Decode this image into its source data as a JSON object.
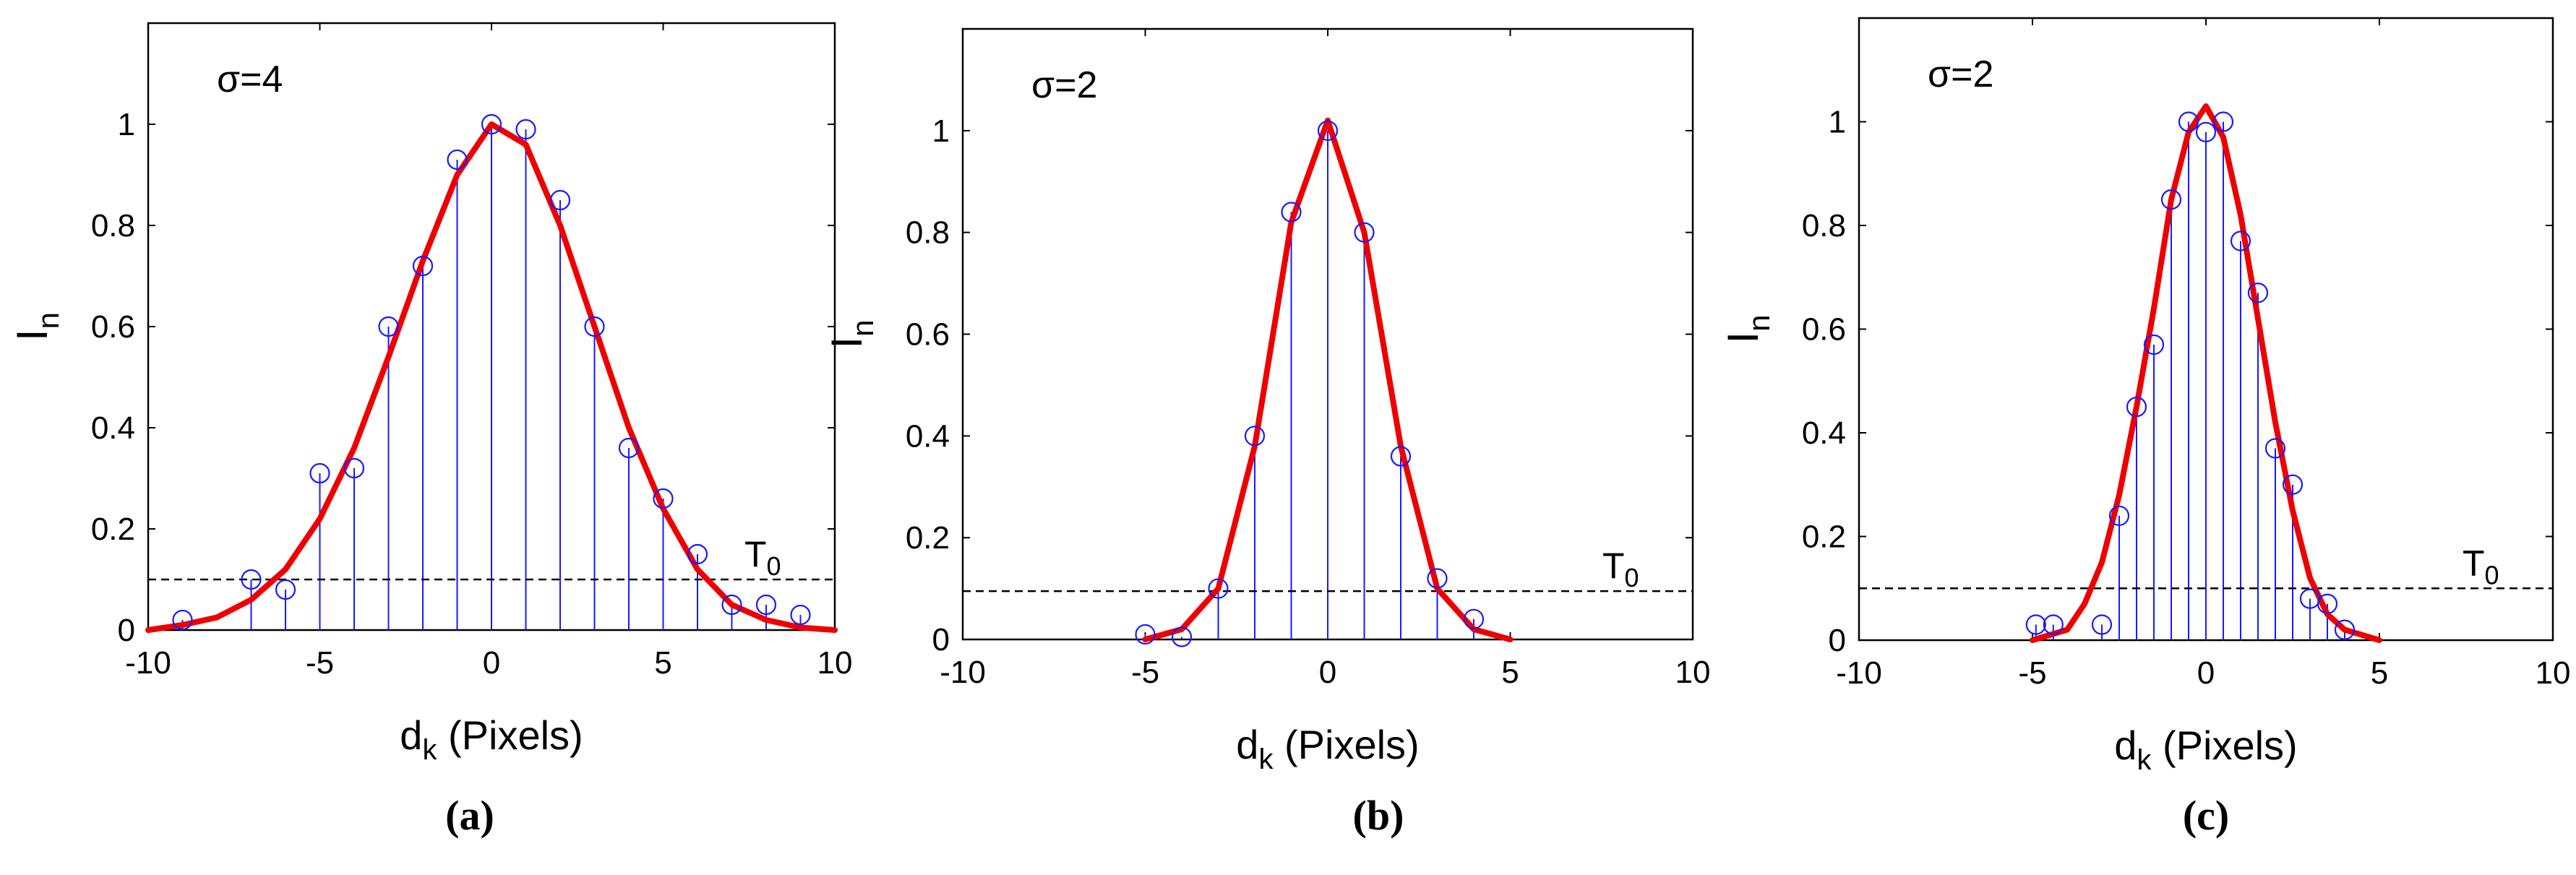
{
  "figure": {
    "panels": [
      "a",
      "b",
      "c"
    ],
    "caption_labels": [
      "(a)",
      "(b)",
      "(c)"
    ]
  },
  "colors": {
    "fit": "#ee0000",
    "stem": "#1a1aff",
    "marker": "#1a1aff",
    "threshold": "#000000",
    "axis": "#000000"
  },
  "chart_data": [
    {
      "type": "stem",
      "panel": "a",
      "sigma_label": "σ=4",
      "ylabel_main": "I",
      "ylabel_sub": "n",
      "xlabel_main": "d",
      "xlabel_sub": "k",
      "xlabel_rest": " (Pixels)",
      "threshold_main": "T",
      "threshold_sub": "0",
      "threshold": 0.1,
      "xlim": [
        -10,
        10
      ],
      "ylim": [
        0,
        1.2
      ],
      "xticks": [
        -10,
        -5,
        0,
        5,
        10
      ],
      "yticks": [
        0,
        0.2,
        0.4,
        0.6,
        0.8,
        1
      ],
      "ytick_labels": [
        "0",
        "0.2",
        "0.4",
        "0.6",
        "0.8",
        "1"
      ],
      "samples": {
        "x": [
          -9,
          -7,
          -6,
          -5,
          -4,
          -3,
          -2,
          -1,
          0,
          1,
          2,
          3,
          4,
          5,
          6,
          7,
          8,
          9
        ],
        "y": [
          0.02,
          0.1,
          0.08,
          0.31,
          0.32,
          0.6,
          0.72,
          0.93,
          1.0,
          0.99,
          0.85,
          0.6,
          0.36,
          0.26,
          0.15,
          0.05,
          0.05,
          0.03
        ]
      },
      "fit": {
        "x": [
          -10,
          -9,
          -8,
          -7,
          -6,
          -5,
          -4,
          -3,
          -2,
          -1,
          0,
          1,
          2,
          3,
          4,
          5,
          6,
          7,
          8,
          9,
          10
        ],
        "y": [
          0.0,
          0.01,
          0.025,
          0.06,
          0.12,
          0.22,
          0.36,
          0.54,
          0.73,
          0.9,
          1.0,
          0.96,
          0.8,
          0.6,
          0.4,
          0.24,
          0.12,
          0.05,
          0.02,
          0.005,
          0.0
        ]
      }
    },
    {
      "type": "stem",
      "panel": "b",
      "sigma_label": "σ=2",
      "ylabel_main": "I",
      "ylabel_sub": "n",
      "xlabel_main": "d",
      "xlabel_sub": "k",
      "xlabel_rest": " (Pixels)",
      "threshold_main": "T",
      "threshold_sub": "0",
      "threshold": 0.095,
      "xlim": [
        -10,
        10
      ],
      "ylim": [
        0,
        1.2
      ],
      "xticks": [
        -10,
        -5,
        0,
        5,
        10
      ],
      "yticks": [
        0,
        0.2,
        0.4,
        0.6,
        0.8,
        1
      ],
      "ytick_labels": [
        "0",
        "0.2",
        "0.4",
        "0.6",
        "0.8",
        "1"
      ],
      "samples": {
        "x": [
          -5,
          -4,
          -3,
          -2,
          -1,
          0,
          1,
          2,
          3,
          4
        ],
        "y": [
          0.01,
          0.005,
          0.1,
          0.4,
          0.84,
          1.0,
          0.8,
          0.36,
          0.12,
          0.04
        ]
      },
      "fit": {
        "x": [
          -5,
          -4,
          -3,
          -2,
          -1,
          0,
          1,
          2,
          3,
          4,
          5
        ],
        "y": [
          0.0,
          0.02,
          0.1,
          0.38,
          0.82,
          1.02,
          0.8,
          0.38,
          0.1,
          0.02,
          0.0
        ]
      }
    },
    {
      "type": "stem",
      "panel": "c",
      "sigma_label": "σ=2",
      "ylabel_main": "I",
      "ylabel_sub": "n",
      "xlabel_main": "d",
      "xlabel_sub": "k",
      "xlabel_rest": " (Pixels)",
      "threshold_main": "T",
      "threshold_sub": "0",
      "threshold": 0.1,
      "xlim": [
        -10,
        10
      ],
      "ylim": [
        0,
        1.2
      ],
      "xticks": [
        -10,
        -5,
        0,
        5,
        10
      ],
      "yticks": [
        0,
        0.2,
        0.4,
        0.6,
        0.8,
        1
      ],
      "ytick_labels": [
        "0",
        "0.2",
        "0.4",
        "0.6",
        "0.8",
        "1"
      ],
      "samples": {
        "x": [
          -4.9,
          -4.4,
          -3,
          -2.5,
          -2,
          -1.5,
          -1,
          -0.5,
          0,
          0.5,
          1,
          1.5,
          2,
          2.5,
          3,
          3.5,
          4
        ],
        "y": [
          0.03,
          0.03,
          0.03,
          0.24,
          0.45,
          0.57,
          0.85,
          1.0,
          0.98,
          1.0,
          0.77,
          0.67,
          0.37,
          0.3,
          0.08,
          0.07,
          0.02
        ]
      },
      "fit": {
        "x": [
          -5,
          -4,
          -3.5,
          -3,
          -2.5,
          -2,
          -1.5,
          -1,
          -0.5,
          0,
          0.5,
          1,
          1.5,
          2,
          2.5,
          3,
          3.5,
          4,
          5
        ],
        "y": [
          0.0,
          0.02,
          0.07,
          0.15,
          0.28,
          0.45,
          0.64,
          0.85,
          0.98,
          1.03,
          0.97,
          0.82,
          0.62,
          0.42,
          0.25,
          0.12,
          0.05,
          0.02,
          0.0
        ]
      }
    }
  ]
}
